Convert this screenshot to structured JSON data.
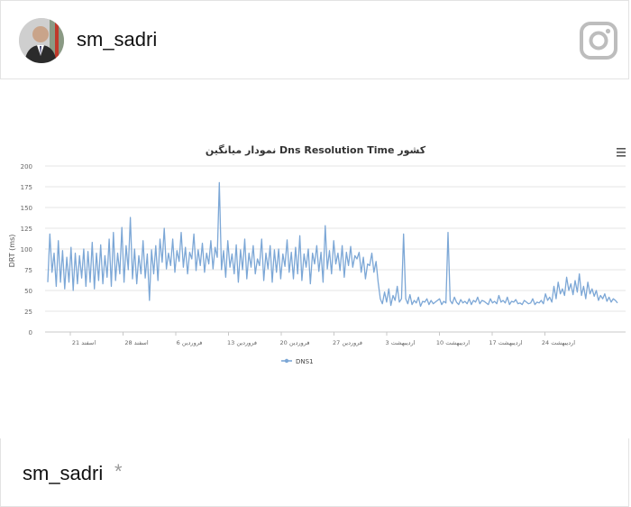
{
  "header": {
    "username": "sm_sadri",
    "avatar_icon": "avatar-person-icon",
    "platform_icon": "instagram-icon"
  },
  "footer": {
    "username": "sm_sadri",
    "marker": "*"
  },
  "chart_data": {
    "type": "line",
    "title": "نمودار میانگین Dns Resolution Time کشور",
    "ylabel": "DRT (ms)",
    "ylim": [
      0,
      200
    ],
    "yticks": [
      "0",
      "25",
      "50",
      "75",
      "100",
      "125",
      "150",
      "175",
      "200"
    ],
    "xtick_labels": [
      "اسفند 21",
      "اسفند 28",
      "فروردین 6",
      "فروردین 13",
      "فروردین 20",
      "فروردین 27",
      "اردیبهشت 3",
      "اردیبهشت 10",
      "اردیبهشت 17",
      "اردیبهشت 24"
    ],
    "legend": [
      "DNS1"
    ],
    "menu_icon": "hamburger-menu-icon",
    "color": "#7ca7d6",
    "series": [
      {
        "name": "DNS1",
        "values": [
          60,
          118,
          72,
          95,
          55,
          110,
          60,
          98,
          52,
          90,
          60,
          102,
          50,
          95,
          58,
          92,
          65,
          100,
          55,
          97,
          60,
          108,
          52,
          95,
          62,
          105,
          58,
          92,
          66,
          112,
          55,
          120,
          62,
          95,
          70,
          126,
          60,
          104,
          75,
          138,
          64,
          100,
          58,
          92,
          70,
          110,
          65,
          94,
          38,
          99,
          70,
          104,
          62,
          112,
          84,
          125,
          76,
          95,
          80,
          112,
          72,
          98,
          85,
          120,
          78,
          102,
          70,
          96,
          88,
          118,
          74,
          99,
          80,
          107,
          72,
          95,
          82,
          110,
          76,
          102,
          90,
          180,
          75,
          98,
          66,
          110,
          78,
          94,
          70,
          105,
          60,
          99,
          75,
          112,
          64,
          95,
          78,
          104,
          70,
          88,
          80,
          112,
          62,
          95,
          76,
          104,
          60,
          99,
          72,
          100,
          64,
          94,
          79,
          111,
          72,
          96,
          64,
          102,
          70,
          116,
          62,
          94,
          78,
          100,
          58,
          95,
          82,
          104,
          73,
          96,
          60,
          128,
          76,
          98,
          70,
          110,
          82,
          95,
          74,
          104,
          66,
          96,
          80,
          103,
          78,
          92,
          88,
          96,
          72,
          90,
          64,
          82,
          80,
          95,
          72,
          85,
          60,
          40,
          34,
          48,
          36,
          52,
          32,
          44,
          38,
          55,
          36,
          40,
          118,
          40,
          34,
          45,
          33,
          38,
          35,
          42,
          31,
          37,
          36,
          40,
          33,
          38,
          34,
          36,
          38,
          40,
          33,
          37,
          35,
          120,
          38,
          34,
          42,
          36,
          33,
          39,
          35,
          37,
          34,
          40,
          33,
          38,
          36,
          42,
          34,
          38,
          37,
          35,
          33,
          40,
          35,
          37,
          34,
          44,
          36,
          38,
          35,
          42,
          33,
          37,
          36,
          39,
          34,
          35,
          33,
          38,
          36,
          34,
          35,
          40,
          33,
          36,
          35,
          38,
          34,
          46,
          38,
          42,
          36,
          55,
          40,
          60,
          46,
          52,
          44,
          66,
          50,
          58,
          45,
          62,
          48,
          70,
          44,
          55,
          40,
          60,
          46,
          52,
          43,
          50,
          38,
          44,
          40,
          46,
          37,
          42,
          36,
          40,
          38,
          35
        ]
      }
    ]
  }
}
